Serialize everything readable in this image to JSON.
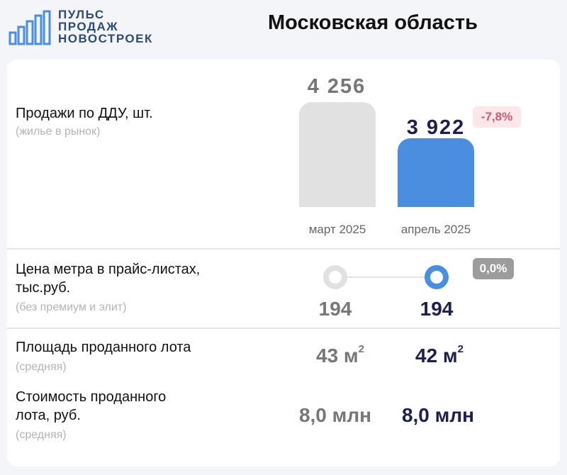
{
  "logo": {
    "lines": [
      "ПУЛЬС",
      "ПРОДАЖ",
      "НОВОСТРОЕК"
    ]
  },
  "region": "Московская область",
  "sales": {
    "label": "Продажи по ДДУ, шт.",
    "sublabel": "(жилье в рынок)",
    "prev": {
      "period": "март 2025",
      "value": 4256,
      "display": "4 256"
    },
    "curr": {
      "period": "апрель 2025",
      "value": 3922,
      "display": "3 922"
    },
    "change": "-7,8%"
  },
  "price": {
    "label_line1": "Цена метра в прайс-листах,",
    "label_line2": "тыс.руб.",
    "sublabel": "(без премиум и элит)",
    "prev_value": "194",
    "curr_value": "194",
    "change": "0,0%"
  },
  "area": {
    "label": "Площадь проданного лота",
    "sublabel": "(средняя)",
    "prev_value": "43 м",
    "curr_value": "42 м",
    "unit_sup": "2"
  },
  "cost": {
    "label_line1": "Стоимость проданного",
    "label_line2": "лота, руб.",
    "sublabel": "(средняя)",
    "prev_value": "8,0 млн",
    "curr_value": "8,0 млн"
  },
  "colors": {
    "prev": "#e1e1e1",
    "curr": "#4a8fdf",
    "prev_text": "#777777",
    "curr_text": "#1d1f4f",
    "negative_badge_bg": "#fde7ea",
    "negative_badge_text": "#d9576a",
    "neutral_badge_bg": "#9c9c9c"
  },
  "icons": {
    "logo": "city-skyline-icon"
  }
}
